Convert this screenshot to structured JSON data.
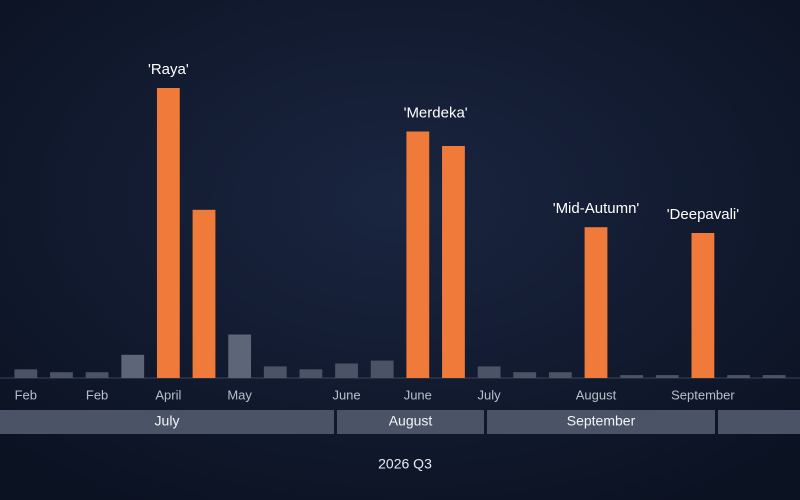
{
  "chart_data": {
    "type": "bar",
    "categories": [
      "Feb",
      null,
      "Feb",
      null,
      "April",
      null,
      "May",
      null,
      null,
      "June",
      null,
      "June",
      null,
      "July",
      null,
      null,
      "August",
      null,
      null,
      "September",
      null,
      null
    ],
    "values": [
      3,
      2,
      2,
      8,
      100,
      58,
      15,
      4,
      3,
      5,
      6,
      85,
      80,
      4,
      2,
      2,
      52,
      1,
      1,
      50,
      1,
      1
    ],
    "bar_colors": [
      "#4a5466",
      "#4a5466",
      "#4a5466",
      "#5c6678",
      "#f07a3a",
      "#f07a3a",
      "#5c6678",
      "#4a5466",
      "#4a5466",
      "#4a5466",
      "#4a5466",
      "#f07a3a",
      "#f07a3a",
      "#4a5466",
      "#4a5466",
      "#4a5466",
      "#f07a3a",
      "#4a5466",
      "#4a5466",
      "#f07a3a",
      "#4a5466",
      "#4a5466"
    ],
    "ylim": [
      0,
      100
    ],
    "annotations": [
      "'Raya'",
      "'Merdeka'",
      "'Mid-Autumn'",
      "'Deepavali'"
    ],
    "groups": [
      "July",
      "August",
      "September"
    ],
    "period_label": "2026 Q3"
  }
}
